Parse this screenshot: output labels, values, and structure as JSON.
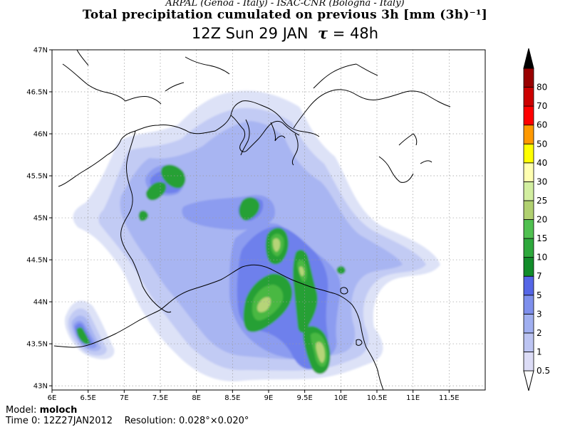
{
  "header": {
    "credit": "ARPAL (Genoa - Italy)  -  ISAC-CNR (Bologna - Italy)",
    "title": "Total precipitation cumulated on previous 3h [mm (3h)⁻¹]",
    "time_label": "12Z Sun 29 JAN",
    "tau_symbol": "τ",
    "lead_label": "= 48h"
  },
  "map": {
    "lon_range": [
      6.0,
      12.0
    ],
    "lat_range": [
      42.95,
      47.0
    ],
    "lon_ticks": [
      "6E",
      "6.5E",
      "7E",
      "7.5E",
      "8E",
      "8.5E",
      "9E",
      "9.5E",
      "10E",
      "10.5E",
      "11E",
      "11.5E"
    ],
    "lat_ticks": [
      "43N",
      "43.5N",
      "44N",
      "44.5N",
      "45N",
      "45.5N",
      "46N",
      "46.5N",
      "47N"
    ],
    "grid": "dotted"
  },
  "colorbar": {
    "levels": [
      "0.5",
      "1",
      "2",
      "3",
      "5",
      "7",
      "10",
      "15",
      "20",
      "25",
      "30",
      "40",
      "50",
      "60",
      "70",
      "80"
    ],
    "colors": [
      "#ffffff",
      "#dcdcf6",
      "#bcc4f2",
      "#a0aff0",
      "#7e8fec",
      "#5566e6",
      "#128c2a",
      "#2ea83c",
      "#50c050",
      "#b0d070",
      "#d2eea0",
      "#ffffb0",
      "#ffff00",
      "#ff9900",
      "#ff0000",
      "#cc0000",
      "#990000",
      "#000000"
    ]
  },
  "precip_colors": {
    "p05": "#dde2f7",
    "p1": "#c2cbf4",
    "p2": "#a8b5f2",
    "p3": "#8c9cf0",
    "p5": "#6e80ec",
    "p7": "#26a035",
    "p10": "#48b842",
    "p15": "#b6d478"
  },
  "footer": {
    "model_label": "Model:",
    "model_value": "moloch",
    "time0_label": "Time 0:",
    "time0_value": "12Z27JAN2012",
    "resolution_label": "Resolution:",
    "resolution_value": "0.028°×0.020°"
  }
}
